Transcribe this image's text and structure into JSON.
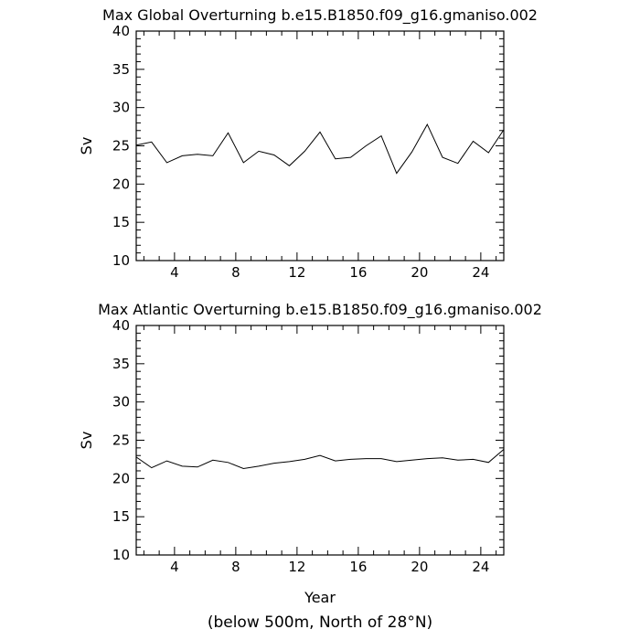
{
  "footnote": "(below 500m, North of 28°N)",
  "chart_data": [
    {
      "type": "line",
      "title": "Max Global Overturning b.e15.B1850.f09_g16.gmaniso.002",
      "xlabel": "",
      "ylabel": "Sv",
      "xlim": [
        1.5,
        25.5
      ],
      "ylim": [
        10,
        40
      ],
      "xticks": [
        4,
        8,
        12,
        16,
        20,
        24
      ],
      "xtick_labels": [
        "4",
        "8",
        "12",
        "16",
        "20",
        "24"
      ],
      "yticks": [
        10,
        15,
        20,
        25,
        30,
        35,
        40
      ],
      "ytick_labels": [
        "10",
        "15",
        "20",
        "25",
        "30",
        "35",
        "40"
      ],
      "grid": false,
      "x": [
        1.5,
        2.5,
        3.5,
        4.5,
        5.5,
        6.5,
        7.5,
        8.5,
        9.5,
        10.5,
        11.5,
        12.5,
        13.5,
        14.5,
        15.5,
        16.5,
        17.5,
        18.5,
        19.5,
        20.5,
        21.5,
        22.5,
        23.5,
        24.5,
        25.5
      ],
      "values": [
        25.1,
        25.5,
        22.8,
        23.7,
        23.9,
        23.7,
        26.7,
        22.8,
        24.3,
        23.8,
        22.4,
        24.3,
        26.8,
        23.3,
        23.5,
        25.0,
        26.3,
        21.4,
        24.2,
        27.8,
        23.5,
        22.7,
        25.6,
        24.1,
        27.1
      ]
    },
    {
      "type": "line",
      "title": "Max Atlantic Overturning b.e15.B1850.f09_g16.gmaniso.002",
      "xlabel": "Year",
      "ylabel": "Sv",
      "xlim": [
        1.5,
        25.5
      ],
      "ylim": [
        10,
        40
      ],
      "xticks": [
        4,
        8,
        12,
        16,
        20,
        24
      ],
      "xtick_labels": [
        "4",
        "8",
        "12",
        "16",
        "20",
        "24"
      ],
      "yticks": [
        10,
        15,
        20,
        25,
        30,
        35,
        40
      ],
      "ytick_labels": [
        "10",
        "15",
        "20",
        "25",
        "30",
        "35",
        "40"
      ],
      "grid": false,
      "x": [
        1.5,
        2.5,
        3.5,
        4.5,
        5.5,
        6.5,
        7.5,
        8.5,
        9.5,
        10.5,
        11.5,
        12.5,
        13.5,
        14.5,
        15.5,
        16.5,
        17.5,
        18.5,
        19.5,
        20.5,
        21.5,
        22.5,
        23.5,
        24.5,
        25.5
      ],
      "values": [
        22.8,
        21.4,
        22.3,
        21.6,
        21.5,
        22.4,
        22.1,
        21.3,
        21.6,
        22.0,
        22.2,
        22.5,
        23.0,
        22.3,
        22.5,
        22.6,
        22.6,
        22.2,
        22.4,
        22.6,
        22.7,
        22.4,
        22.5,
        22.1,
        23.8
      ]
    }
  ]
}
